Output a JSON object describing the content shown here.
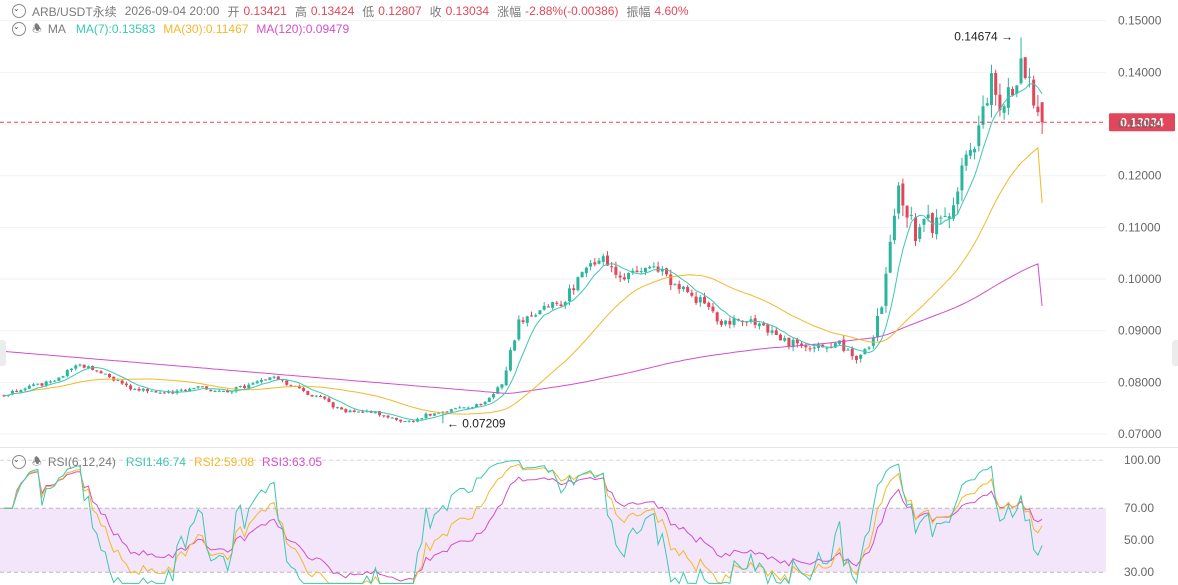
{
  "header": {
    "symbol": "ARB/USDT永续",
    "datetime": "2026-09-04 20:00",
    "open_label": "开",
    "open": "0.13421",
    "high_label": "高",
    "high": "0.13424",
    "low_label": "低",
    "low": "0.12807",
    "close_label": "收",
    "close": "0.13034",
    "change_label": "涨幅",
    "change": "-2.88%(-0.00386)",
    "amplitude_label": "振幅",
    "amplitude": "4.60%"
  },
  "ma_legend": {
    "label": "MA",
    "ma7": "MA(7):0.13583",
    "ma30": "MA(30):0.11467",
    "ma120": "MA(120):0.09479"
  },
  "rsi_legend": {
    "label": "RSI(6,12,24)",
    "rsi1": "RSI1:46.74",
    "rsi2": "RSI2:59.08",
    "rsi3": "RSI3:63.05"
  },
  "colors": {
    "up": "#2bb59d",
    "down": "#e0475a",
    "ma7": "#3cc8b0",
    "ma30": "#f2b92a",
    "ma120": "#d44fc8",
    "rsi1": "#3cc8b0",
    "rsi2": "#f2b92a",
    "rsi3": "#d44fc8",
    "rsi_band": "#f3e6fb",
    "last_price": "#e0475a"
  },
  "chart_data": [
    {
      "type": "candlestick",
      "ylim": [
        0.0675,
        0.154
      ],
      "yticks": [
        "0.15000",
        "0.14000",
        "0.13000",
        "0.12000",
        "0.11000",
        "0.10000",
        "0.09000",
        "0.08000",
        "0.07000"
      ],
      "ytick_values": [
        0.15,
        0.14,
        0.13,
        0.12,
        0.11,
        0.1,
        0.09,
        0.08,
        0.07
      ],
      "last_price": "0.13034",
      "annotations": {
        "high": "0.14674",
        "low": "0.07209"
      },
      "anchors": [
        [
          0,
          0.0775
        ],
        [
          12,
          0.0805
        ],
        [
          18,
          0.0835
        ],
        [
          24,
          0.0815
        ],
        [
          30,
          0.079
        ],
        [
          38,
          0.0778
        ],
        [
          46,
          0.079
        ],
        [
          52,
          0.078
        ],
        [
          58,
          0.0795
        ],
        [
          64,
          0.081
        ],
        [
          70,
          0.0785
        ],
        [
          75,
          0.077
        ],
        [
          80,
          0.0745
        ],
        [
          86,
          0.0745
        ],
        [
          92,
          0.073
        ],
        [
          96,
          0.0725
        ],
        [
          102,
          0.0742
        ],
        [
          108,
          0.075
        ],
        [
          114,
          0.076
        ],
        [
          118,
          0.08
        ],
        [
          122,
          0.0915
        ],
        [
          128,
          0.094
        ],
        [
          133,
          0.096
        ],
        [
          137,
          0.1015
        ],
        [
          141,
          0.1045
        ],
        [
          144,
          0.102
        ],
        [
          148,
          0.1005
        ],
        [
          152,
          0.103
        ],
        [
          156,
          0.101
        ],
        [
          160,
          0.0985
        ],
        [
          166,
          0.095
        ],
        [
          170,
          0.0915
        ],
        [
          174,
          0.092
        ],
        [
          180,
          0.091
        ],
        [
          184,
          0.088
        ],
        [
          190,
          0.087
        ],
        [
          194,
          0.087
        ],
        [
          198,
          0.0875
        ],
        [
          202,
          0.085
        ],
        [
          206,
          0.088
        ],
        [
          209,
          0.1
        ],
        [
          212,
          0.118
        ],
        [
          216,
          0.109
        ],
        [
          219,
          0.111
        ],
        [
          222,
          0.11
        ],
        [
          226,
          0.118
        ],
        [
          230,
          0.127
        ],
        [
          234,
          0.138
        ],
        [
          237,
          0.133
        ],
        [
          241,
          0.142
        ],
        [
          243,
          0.137
        ],
        [
          245,
          0.1343
        ],
        [
          246,
          0.1303
        ]
      ],
      "ma7_last": 0.13583,
      "ma30_last": 0.11467,
      "ma120_last": 0.09479,
      "ma120_start": 0.086
    },
    {
      "type": "line",
      "name": "RSI(6,12,24)",
      "ylim": [
        22,
        107
      ],
      "yticks": [
        "100.00",
        "70.00",
        "50.00",
        "30.00"
      ],
      "ytick_values": [
        100,
        70,
        50,
        30
      ],
      "band": [
        30,
        70
      ],
      "series_last": {
        "RSI1": 46.74,
        "RSI2": 59.08,
        "RSI3": 63.05
      }
    }
  ]
}
